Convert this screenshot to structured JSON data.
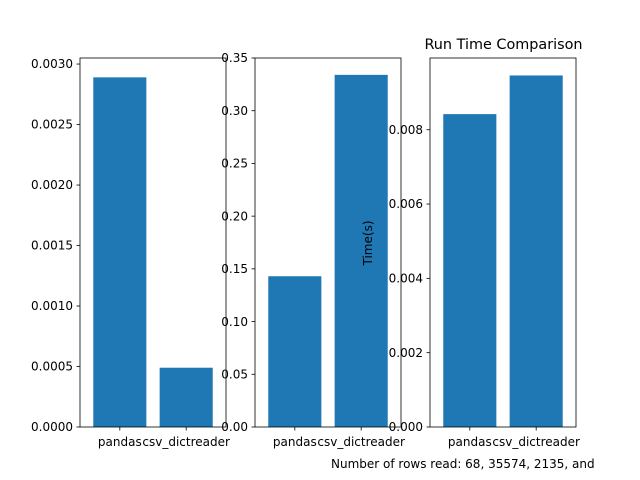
{
  "figure": {
    "title": "Run Time Comparison",
    "ylabel": "Time(s)",
    "xlabel": "Number of rows read: 68, 35574, 2135, and"
  },
  "colors": {
    "bar": "#1f77b4",
    "axis": "#000000",
    "background": "#ffffff"
  },
  "chart_data": [
    {
      "type": "bar",
      "categories": [
        "pandas",
        "csv_dictreader"
      ],
      "values": [
        0.00289,
        0.00049
      ],
      "ylim": [
        0,
        0.00305
      ],
      "yticks": [
        0,
        0.0005,
        0.001,
        0.0015,
        0.002,
        0.0025,
        0.003
      ],
      "ytick_labels": [
        "0.0000",
        "0.0005",
        "0.0010",
        "0.0015",
        "0.0020",
        "0.0025",
        "0.0030"
      ],
      "grid": false
    },
    {
      "type": "bar",
      "categories": [
        "pandas",
        "csv_dictreader"
      ],
      "values": [
        0.143,
        0.334
      ],
      "ylim": [
        0,
        0.35
      ],
      "yticks": [
        0,
        0.05,
        0.1,
        0.15,
        0.2,
        0.25,
        0.3,
        0.35
      ],
      "ytick_labels": [
        "0.00",
        "0.05",
        "0.10",
        "0.15",
        "0.20",
        "0.25",
        "0.30",
        "0.35"
      ],
      "grid": false
    },
    {
      "type": "bar",
      "categories": [
        "pandas",
        "csv_dictreader"
      ],
      "values": [
        0.00842,
        0.00946
      ],
      "ylim": [
        0,
        0.00993
      ],
      "yticks": [
        0,
        0.002,
        0.004,
        0.006,
        0.008
      ],
      "ytick_labels": [
        "0.000",
        "0.002",
        "0.004",
        "0.006",
        "0.008"
      ],
      "title": "Run Time Comparison",
      "ylabel": "Time(s)",
      "xlabel": "Number of rows read: 68, 35574, 2135, and",
      "grid": false
    }
  ]
}
